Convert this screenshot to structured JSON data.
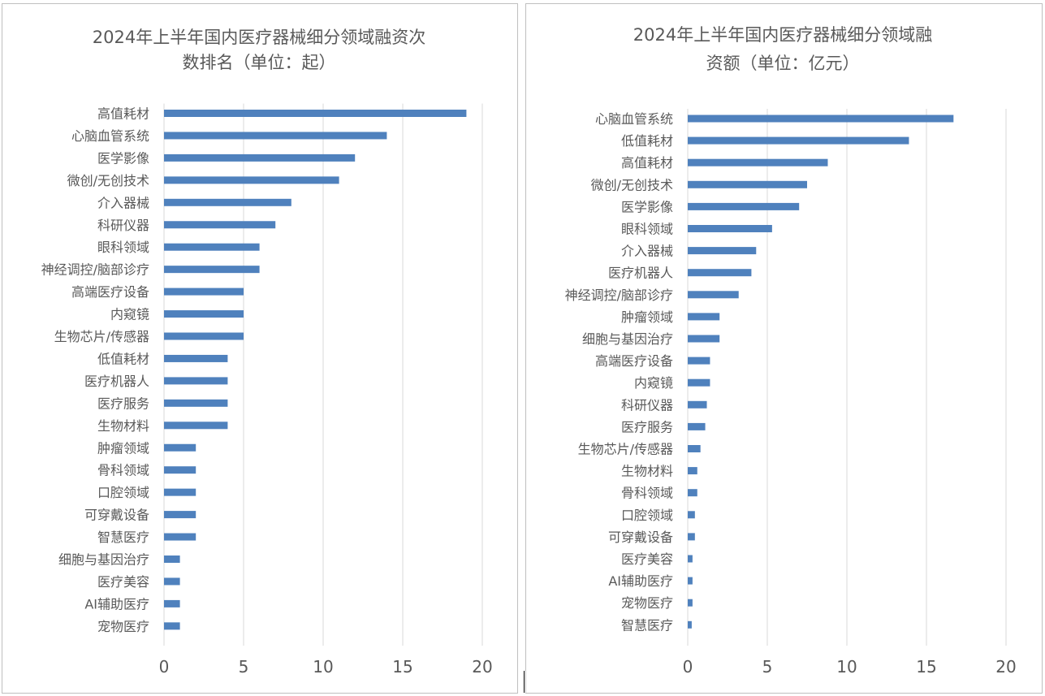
{
  "chart_data": [
    {
      "type": "bar",
      "orientation": "horizontal",
      "title_lines": [
        "2024年上半年国内医疗器械细分领域融资次",
        "数排名（单位：起）"
      ],
      "categories": [
        "高值耗材",
        "心脑血管系统",
        "医学影像",
        "微创/无创技术",
        "介入器械",
        "科研仪器",
        "眼科领域",
        "神经调控/脑部诊疗",
        "高端医疗设备",
        "内窥镜",
        "生物芯片/传感器",
        "低值耗材",
        "医疗机器人",
        "医疗服务",
        "生物材料",
        "肿瘤领域",
        "骨科领域",
        "口腔领域",
        "可穿戴设备",
        "智慧医疗",
        "细胞与基因治疗",
        "医疗美容",
        "AI辅助医疗",
        "宠物医疗"
      ],
      "values": [
        19,
        14,
        12,
        11,
        8,
        7,
        6,
        6,
        5,
        5,
        5,
        4,
        4,
        4,
        4,
        2,
        2,
        2,
        2,
        2,
        1,
        1,
        1,
        1
      ],
      "xlim": [
        0,
        20
      ],
      "xticks": [
        0,
        5,
        10,
        15,
        20
      ],
      "grid": true,
      "legend": "none",
      "bar_color": "#4f81bd"
    },
    {
      "type": "bar",
      "orientation": "horizontal",
      "title_lines": [
        "2024年上半年国内医疗器械细分领域融",
        "资额（单位：亿元）"
      ],
      "categories": [
        "心脑血管系统",
        "低值耗材",
        "高值耗材",
        "微创/无创技术",
        "医学影像",
        "眼科领域",
        "介入器械",
        "医疗机器人",
        "神经调控/脑部诊疗",
        "肿瘤领域",
        "细胞与基因治疗",
        "高端医疗设备",
        "内窥镜",
        "科研仪器",
        "医疗服务",
        "生物芯片/传感器",
        "生物材料",
        "骨科领域",
        "口腔领域",
        "可穿戴设备",
        "医疗美容",
        "AI辅助医疗",
        "宠物医疗",
        "智慧医疗"
      ],
      "values": [
        16.7,
        13.9,
        8.8,
        7.5,
        7.0,
        5.3,
        4.3,
        4.0,
        3.2,
        2.0,
        2.0,
        1.4,
        1.4,
        1.2,
        1.1,
        0.8,
        0.6,
        0.6,
        0.45,
        0.45,
        0.3,
        0.3,
        0.3,
        0.25
      ],
      "xlim": [
        0,
        20
      ],
      "xticks": [
        0,
        5,
        10,
        15,
        20
      ],
      "grid": true,
      "legend": "none",
      "bar_color": "#4f81bd"
    }
  ]
}
